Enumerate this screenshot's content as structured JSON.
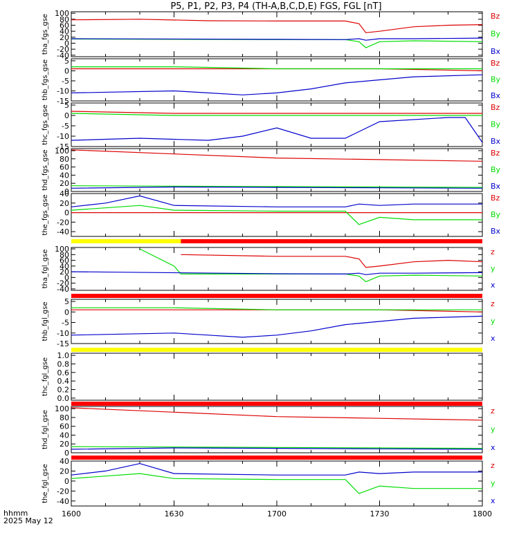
{
  "title": "P5, P1, P2, P3, P4 (TH-A,B,C,D,E) FGS, FGL [nT]",
  "footer": {
    "time_label": "hhmm",
    "date_label": "2025 May 12"
  },
  "colors": {
    "x": "#0000cc",
    "y": "#00dd00",
    "z": "#dd0000",
    "bar_red": "#ff0000",
    "bar_yellow": "#ffff00"
  },
  "chart_data": [
    {
      "type": "line",
      "ylabel": "tha_fgs_gse",
      "yticks": [
        "100",
        "80",
        "60",
        "40",
        "20",
        "0",
        "-20",
        "-40"
      ],
      "ylim": [
        -45,
        105
      ],
      "legend": [
        "Bz",
        "By",
        "Bx"
      ],
      "x_ticks": [
        "1600",
        "1630",
        "1700",
        "1730",
        "1800"
      ],
      "series": [
        {
          "name": "Bz",
          "color": "z",
          "x": [
            1600,
            1620,
            1640,
            1700,
            1720,
            1724,
            1726,
            1730,
            1740,
            1750,
            1800
          ],
          "values": [
            78,
            80,
            75,
            74,
            74,
            65,
            35,
            40,
            55,
            60,
            62
          ]
        },
        {
          "name": "By",
          "color": "y",
          "x": [
            1600,
            1700,
            1720,
            1724,
            1726,
            1730,
            1740,
            1800
          ],
          "values": [
            14,
            12,
            12,
            5,
            -15,
            5,
            8,
            5
          ]
        },
        {
          "name": "Bx",
          "color": "x",
          "x": [
            1600,
            1700,
            1720,
            1724,
            1726,
            1730,
            1740,
            1800
          ],
          "values": [
            15,
            13,
            12,
            15,
            10,
            15,
            15,
            17
          ]
        }
      ]
    },
    {
      "type": "line",
      "ylabel": "thb_fgs_gse",
      "yticks": [
        "5",
        "0",
        "-5",
        "-10",
        "-15"
      ],
      "ylim": [
        -15,
        6
      ],
      "legend": [
        "Bz",
        "By",
        "Bx"
      ],
      "x_ticks": [
        "1600",
        "1630",
        "1700",
        "1730",
        "1800"
      ],
      "series": [
        {
          "name": "Bz",
          "color": "z",
          "x": [
            1600,
            1630,
            1700,
            1730,
            1800
          ],
          "values": [
            1,
            1,
            1,
            1,
            0
          ]
        },
        {
          "name": "By",
          "color": "y",
          "x": [
            1600,
            1630,
            1700,
            1730,
            1800
          ],
          "values": [
            2,
            2,
            1,
            1,
            1
          ]
        },
        {
          "name": "Bx",
          "color": "x",
          "x": [
            1600,
            1630,
            1640,
            1650,
            1700,
            1710,
            1720,
            1740,
            1800
          ],
          "values": [
            -11,
            -10,
            -11,
            -12,
            -11,
            -9,
            -6,
            -3,
            -2
          ]
        }
      ]
    },
    {
      "type": "line",
      "ylabel": "thc_fgs_gse",
      "yticks": [
        "5",
        "0",
        "-5",
        "-10",
        "-15"
      ],
      "ylim": [
        -15,
        6
      ],
      "legend": [
        "Bz",
        "By",
        "Bx"
      ],
      "x_ticks": [
        "1600",
        "1630",
        "1700",
        "1730",
        "1800"
      ],
      "series": [
        {
          "name": "Bz",
          "color": "z",
          "x": [
            1600,
            1630,
            1700,
            1730,
            1800
          ],
          "values": [
            2,
            1,
            1,
            1,
            1
          ]
        },
        {
          "name": "By",
          "color": "y",
          "x": [
            1600,
            1630,
            1700,
            1730,
            1800
          ],
          "values": [
            1,
            0,
            0,
            0,
            0
          ]
        },
        {
          "name": "Bx",
          "color": "x",
          "x": [
            1600,
            1620,
            1640,
            1650,
            1700,
            1710,
            1720,
            1730,
            1750,
            1755,
            1800
          ],
          "values": [
            -12,
            -11,
            -12,
            -10,
            -6,
            -11,
            -11,
            -3,
            -1,
            -1,
            -13
          ]
        }
      ]
    },
    {
      "type": "line",
      "ylabel": "thd_fgs_gse",
      "yticks": [
        "100",
        "80",
        "60",
        "40",
        "20",
        "0"
      ],
      "ylim": [
        0,
        105
      ],
      "legend": [
        "Bz",
        "By",
        "Bx"
      ],
      "x_ticks": [
        "1600",
        "1630",
        "1700",
        "1730",
        "1800"
      ],
      "series": [
        {
          "name": "Bz",
          "color": "z",
          "x": [
            1600,
            1630,
            1700,
            1730,
            1800
          ],
          "values": [
            102,
            92,
            82,
            78,
            74
          ]
        },
        {
          "name": "By",
          "color": "y",
          "x": [
            1600,
            1630,
            1700,
            1730,
            1800
          ],
          "values": [
            14,
            13,
            12,
            11,
            10
          ]
        },
        {
          "name": "Bx",
          "color": "x",
          "x": [
            1600,
            1630,
            1700,
            1730,
            1800
          ],
          "values": [
            8,
            11,
            10,
            9,
            8
          ]
        }
      ]
    },
    {
      "type": "line",
      "ylabel": "the_fgs_gse",
      "yticks": [
        "40",
        "20",
        "0",
        "-20",
        "-40"
      ],
      "ylim": [
        -50,
        40
      ],
      "legend": [
        "Bz",
        "By",
        "Bx"
      ],
      "x_ticks": [
        "1600",
        "1630",
        "1700",
        "1730",
        "1800"
      ],
      "series": [
        {
          "name": "Bz",
          "color": "z",
          "x": [
            1600,
            1800
          ],
          "values": [
            0,
            0
          ]
        },
        {
          "name": "By",
          "color": "y",
          "x": [
            1600,
            1610,
            1620,
            1630,
            1700,
            1720,
            1724,
            1730,
            1740,
            1800
          ],
          "values": [
            5,
            10,
            15,
            5,
            3,
            3,
            -25,
            -10,
            -15,
            -15
          ]
        },
        {
          "name": "Bx",
          "color": "x",
          "x": [
            1600,
            1610,
            1620,
            1630,
            1700,
            1720,
            1724,
            1730,
            1740,
            1800
          ],
          "values": [
            12,
            20,
            35,
            15,
            12,
            12,
            18,
            15,
            18,
            18
          ]
        }
      ]
    },
    {
      "type": "line",
      "ylabel": "tha_fgl_gse",
      "yticks": [
        "100",
        "80",
        "60",
        "40",
        "20",
        "0",
        "-20",
        "-40"
      ],
      "ylim": [
        -45,
        105
      ],
      "legend": [
        "z",
        "y",
        "x"
      ],
      "x_ticks": [
        "1600",
        "1630",
        "1700",
        "1730",
        "1800"
      ],
      "series": [
        {
          "name": "z",
          "color": "z",
          "x": [
            1632,
            1700,
            1720,
            1724,
            1726,
            1730,
            1740,
            1750,
            1800
          ],
          "values": [
            80,
            74,
            74,
            65,
            35,
            40,
            55,
            60,
            55
          ]
        },
        {
          "name": "y",
          "color": "y",
          "x": [
            1620,
            1630,
            1632,
            1700,
            1720,
            1724,
            1726,
            1730,
            1740,
            1800
          ],
          "values": [
            100,
            40,
            12,
            12,
            12,
            5,
            -15,
            5,
            8,
            5
          ]
        },
        {
          "name": "x",
          "color": "x",
          "x": [
            1600,
            1700,
            1720,
            1724,
            1726,
            1730,
            1740,
            1800
          ],
          "values": [
            20,
            13,
            12,
            15,
            10,
            15,
            15,
            17
          ]
        }
      ]
    },
    {
      "type": "line",
      "ylabel": "thb_fgl_gse",
      "yticks": [
        "5",
        "0",
        "-5",
        "-10",
        "-15"
      ],
      "ylim": [
        -15,
        6
      ],
      "legend": [
        "z",
        "y",
        "x"
      ],
      "x_ticks": [
        "1600",
        "1630",
        "1700",
        "1730",
        "1800"
      ],
      "series": [
        {
          "name": "z",
          "color": "z",
          "x": [
            1600,
            1630,
            1700,
            1730,
            1800
          ],
          "values": [
            1,
            1,
            1,
            1,
            0
          ]
        },
        {
          "name": "y",
          "color": "y",
          "x": [
            1600,
            1630,
            1700,
            1730,
            1800
          ],
          "values": [
            2,
            2,
            1,
            1,
            1
          ]
        },
        {
          "name": "x",
          "color": "x",
          "x": [
            1600,
            1630,
            1640,
            1650,
            1700,
            1710,
            1720,
            1740,
            1800
          ],
          "values": [
            -11,
            -10,
            -11,
            -12,
            -11,
            -9,
            -6,
            -3,
            -2
          ]
        }
      ]
    },
    {
      "type": "line",
      "ylabel": "thc_fgl_gse",
      "yticks": [
        "1.0",
        "0.8",
        "0.6",
        "0.4",
        "0.2",
        "0.0"
      ],
      "ylim": [
        -0.05,
        1.05
      ],
      "legend": [],
      "x_ticks": [
        "1600",
        "1630",
        "1700",
        "1730",
        "1800"
      ],
      "series": []
    },
    {
      "type": "line",
      "ylabel": "thd_fgl_gse",
      "yticks": [
        "100",
        "80",
        "60",
        "40",
        "20",
        "0"
      ],
      "ylim": [
        0,
        105
      ],
      "legend": [
        "z",
        "y",
        "x"
      ],
      "x_ticks": [
        "1600",
        "1630",
        "1700",
        "1730",
        "1800"
      ],
      "series": [
        {
          "name": "z",
          "color": "z",
          "x": [
            1600,
            1630,
            1700,
            1730,
            1800
          ],
          "values": [
            102,
            92,
            82,
            78,
            74
          ]
        },
        {
          "name": "y",
          "color": "y",
          "x": [
            1600,
            1630,
            1700,
            1730,
            1800
          ],
          "values": [
            14,
            13,
            12,
            11,
            10
          ]
        },
        {
          "name": "x",
          "color": "x",
          "x": [
            1600,
            1630,
            1700,
            1730,
            1800
          ],
          "values": [
            8,
            11,
            10,
            9,
            8
          ]
        }
      ]
    },
    {
      "type": "line",
      "ylabel": "the_fgl_gse",
      "yticks": [
        "40",
        "20",
        "0",
        "-20",
        "-40"
      ],
      "ylim": [
        -50,
        40
      ],
      "legend": [
        "z",
        "y",
        "x"
      ],
      "x_ticks": [
        "1600",
        "1630",
        "1700",
        "1730",
        "1800"
      ],
      "series": [
        {
          "name": "y",
          "color": "y",
          "x": [
            1600,
            1610,
            1620,
            1630,
            1700,
            1720,
            1724,
            1730,
            1740,
            1800
          ],
          "values": [
            5,
            10,
            15,
            5,
            3,
            3,
            -25,
            -10,
            -15,
            -15
          ]
        },
        {
          "name": "x",
          "color": "x",
          "x": [
            1600,
            1610,
            1620,
            1630,
            1700,
            1720,
            1724,
            1730,
            1740,
            1800
          ],
          "values": [
            12,
            20,
            35,
            15,
            12,
            12,
            18,
            15,
            18,
            18
          ]
        }
      ]
    }
  ],
  "status_bars": [
    {
      "segments": [
        {
          "from": 1600,
          "to": 1632,
          "color": "bar_yellow"
        },
        {
          "from": 1632,
          "to": 1800,
          "color": "bar_red"
        }
      ]
    },
    {
      "segments": [
        {
          "from": 1600,
          "to": 1800,
          "color": "bar_red"
        }
      ]
    },
    {
      "segments": [
        {
          "from": 1600,
          "to": 1800,
          "color": "bar_yellow"
        }
      ]
    },
    {
      "segments": [
        {
          "from": 1600,
          "to": 1800,
          "color": "bar_red"
        }
      ]
    },
    {
      "segments": [
        {
          "from": 1600,
          "to": 1800,
          "color": "bar_red"
        }
      ]
    }
  ]
}
